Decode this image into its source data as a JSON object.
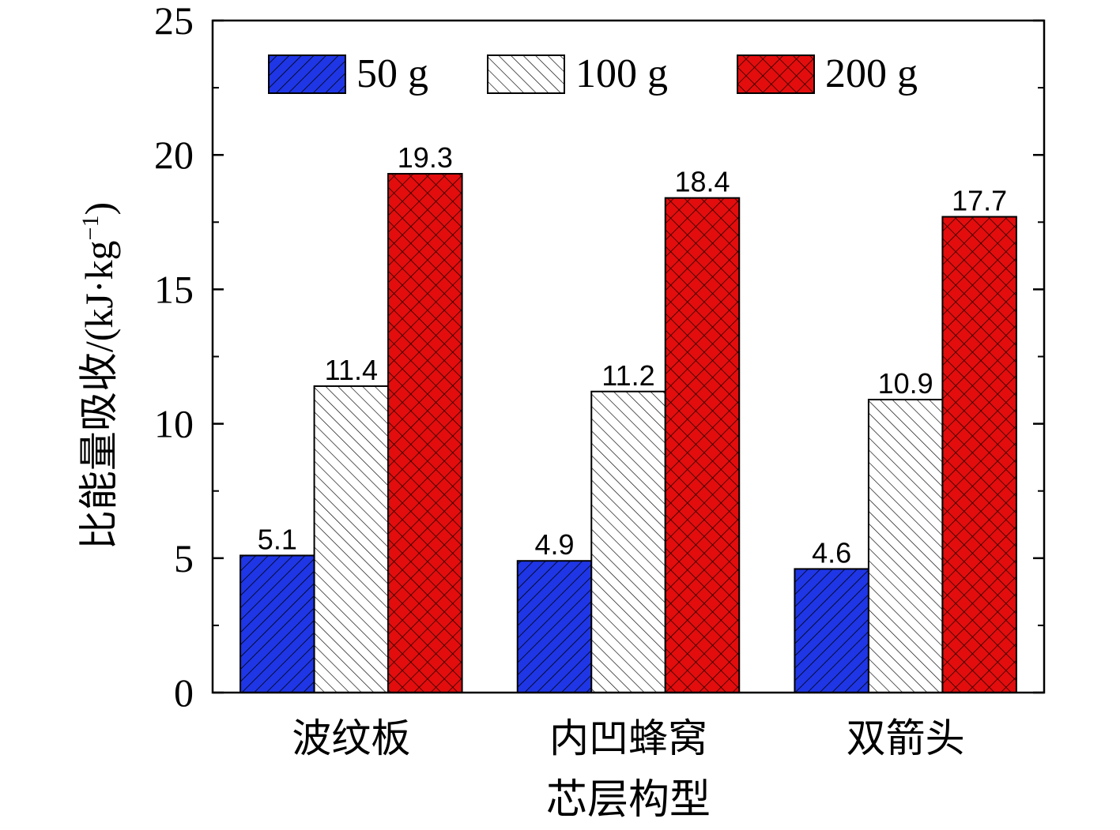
{
  "chart_data": {
    "type": "bar",
    "categories": [
      "波纹板",
      "内凹蜂窝",
      "双箭头"
    ],
    "series": [
      {
        "name": "50 g",
        "values": [
          5.1,
          4.9,
          4.6
        ],
        "color": "#1f36e6",
        "pattern": "diagonal-forward"
      },
      {
        "name": "100 g",
        "values": [
          11.4,
          11.2,
          10.9
        ],
        "color": "#ffffff",
        "pattern": "diagonal-backward"
      },
      {
        "name": "200 g",
        "values": [
          19.3,
          18.4,
          17.7
        ],
        "color": "#e30d0d",
        "pattern": "crosshatch"
      }
    ],
    "value_labels": [
      [
        "5.1",
        "4.9",
        "4.6"
      ],
      [
        "11.4",
        "11.2",
        "10.9"
      ],
      [
        "19.3",
        "18.4",
        "17.7"
      ]
    ],
    "xlabel": "芯层构型",
    "ylabel_main": "比能量吸收/(kJ·kg",
    "ylabel_sup": "−1",
    "ylabel_close": ")",
    "ylim": [
      0,
      25
    ],
    "yticks": [
      0,
      5,
      10,
      15,
      20,
      25
    ],
    "ytick_labels": [
      "0",
      "5",
      "10",
      "15",
      "20",
      "25"
    ],
    "legend_position": "top",
    "grid": false
  }
}
